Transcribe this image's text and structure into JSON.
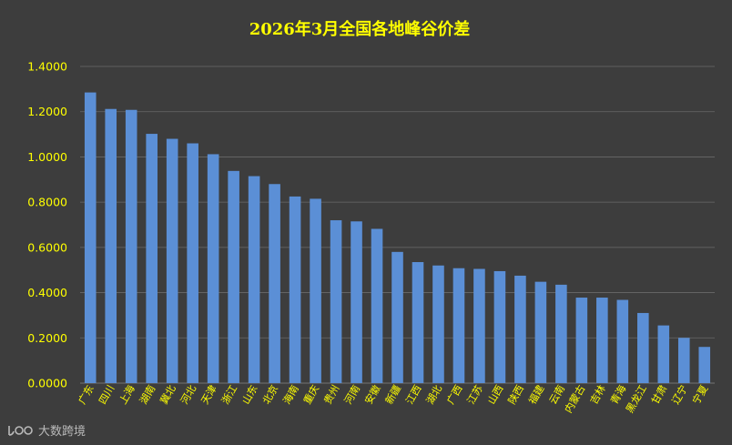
{
  "chart_data": {
    "type": "bar",
    "title": "2026年3月全国各地峰谷价差",
    "xlabel": "",
    "ylabel": "",
    "ylim": [
      0,
      1.4
    ],
    "y_tick_labels": [
      "0.0000",
      "0.2000",
      "0.4000",
      "0.6000",
      "0.8000",
      "1.0000",
      "1.2000",
      "1.4000"
    ],
    "grid": true,
    "legend": "none",
    "categories": [
      "广东",
      "四川",
      "上海",
      "湖南",
      "冀北",
      "河北",
      "天津",
      "浙江",
      "山东",
      "北京",
      "海南",
      "重庆",
      "贵州",
      "河南",
      "安徽",
      "新疆",
      "江西",
      "湖北",
      "广西",
      "江苏",
      "山西",
      "陕西",
      "福建",
      "云南",
      "内蒙古",
      "吉林",
      "青海",
      "黑龙江",
      "甘肃",
      "辽宁",
      "宁夏"
    ],
    "values": [
      1.285,
      1.212,
      1.208,
      1.102,
      1.08,
      1.06,
      1.012,
      0.938,
      0.915,
      0.88,
      0.825,
      0.815,
      0.72,
      0.715,
      0.682,
      0.58,
      0.535,
      0.52,
      0.508,
      0.505,
      0.495,
      0.475,
      0.448,
      0.435,
      0.378,
      0.378,
      0.368,
      0.31,
      0.255,
      0.2,
      0.16
    ],
    "colors": {
      "background": "#3d3d3d",
      "bar": "#5b8fd6",
      "grid": "#6a6a6a",
      "text": "#ffff00"
    }
  },
  "watermark": {
    "text": "大数跨境",
    "icon": "logo-icon"
  }
}
